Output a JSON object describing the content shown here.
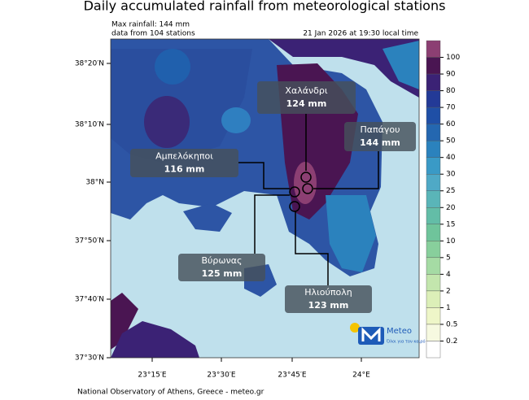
{
  "title": "Daily accumulated rainfall from meteorological stations",
  "info": {
    "max": "Max rainfall: 144 mm",
    "stations": "data from 104 stations",
    "time": "21 Jan 2026 at 19:30 local time"
  },
  "lat_labels": [
    "38°20′N",
    "38°10′N",
    "38°N",
    "37°50′N",
    "37°40′N",
    "37°30′N"
  ],
  "lon_labels": [
    "23°15′E",
    "23°30′E",
    "23°45′E",
    "24°E"
  ],
  "colorbar": {
    "ticks": [
      100,
      90,
      80,
      70,
      60,
      50,
      40,
      30,
      25,
      20,
      15,
      10,
      5,
      4,
      2,
      1,
      0.5,
      0.2
    ],
    "colors": [
      "#8c3f73",
      "#4a1552",
      "#3b2275",
      "#233a97",
      "#1f4fa6",
      "#2467b0",
      "#2b82bd",
      "#3a9ac6",
      "#4fa9c6",
      "#5ab5b8",
      "#63bda7",
      "#6fc49b",
      "#88cf9c",
      "#a5dba4",
      "#c3e6ad",
      "#dcefb8",
      "#eef6c8",
      "#f6f9e0",
      "#ffffff"
    ]
  },
  "callouts": [
    {
      "name": "Χαλάνδρι",
      "value": "124 mm"
    },
    {
      "name": "Παπάγου",
      "value": "144 mm"
    },
    {
      "name": "Αμπελόκηποι",
      "value": "116 mm"
    },
    {
      "name": "Βύρωνας",
      "value": "125 mm"
    },
    {
      "name": "Ηλιούπολη",
      "value": "123 mm"
    }
  ],
  "logo": {
    "name": "Meteo",
    "slogan": "Όλοι για τον καιρό"
  },
  "footer": "National Observatory of Athens, Greece - meteo.gr"
}
